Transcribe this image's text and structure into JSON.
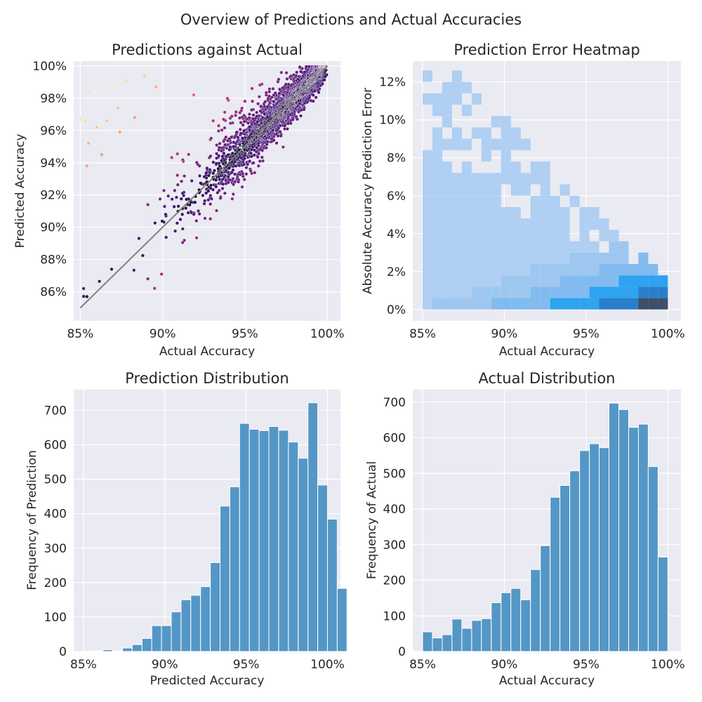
{
  "figure": {
    "suptitle": "Overview of Predictions and Actual Accuracies"
  },
  "chart_data": [
    {
      "type": "scatter",
      "title": "Predictions against Actual",
      "xlabel": "Actual Accuracy",
      "ylabel": "Predicted Accuracy",
      "xlim": [
        84.6,
        100.8
      ],
      "ylim": [
        84.2,
        100.3
      ],
      "xticks": [
        85,
        90,
        95,
        100
      ],
      "xtick_labels": [
        "85%",
        "90%",
        "95%",
        "100%"
      ],
      "yticks": [
        86,
        88,
        90,
        92,
        94,
        96,
        98,
        100
      ],
      "ytick_labels": [
        "86%",
        "88%",
        "90%",
        "92%",
        "94%",
        "96%",
        "98%",
        "100%"
      ],
      "colormap": "magma (dark = small error, light = large error)",
      "reference_line": {
        "x": [
          85,
          100
        ],
        "y": [
          85,
          100
        ],
        "color": "#808080"
      },
      "outlier_points": [
        {
          "x": 85.0,
          "y": 96.7
        },
        {
          "x": 85.3,
          "y": 96.6
        },
        {
          "x": 85.9,
          "y": 98.4
        },
        {
          "x": 86.9,
          "y": 98.8
        },
        {
          "x": 87.8,
          "y": 99.1
        },
        {
          "x": 88.9,
          "y": 99.4
        },
        {
          "x": 89.6,
          "y": 98.7
        },
        {
          "x": 86.0,
          "y": 96.2
        },
        {
          "x": 87.3,
          "y": 97.4
        },
        {
          "x": 86.6,
          "y": 96.6
        },
        {
          "x": 85.5,
          "y": 95.2
        },
        {
          "x": 85.4,
          "y": 93.8
        },
        {
          "x": 86.3,
          "y": 94.5
        },
        {
          "x": 87.4,
          "y": 95.9
        },
        {
          "x": 88.3,
          "y": 96.8
        },
        {
          "x": 86.9,
          "y": 87.4
        },
        {
          "x": 89.1,
          "y": 86.8
        },
        {
          "x": 85.2,
          "y": 86.2
        },
        {
          "x": 85.4,
          "y": 85.7
        }
      ],
      "bulk": {
        "n": 7000,
        "x_distribution": "skewed toward high accuracy, mode ~97%",
        "abs_error_mostly_below": 2
      }
    },
    {
      "type": "heatmap",
      "title": "Prediction Error Heatmap",
      "xlabel": "Actual Accuracy",
      "ylabel": "Absolute Accuracy Prediction Error",
      "xlim": [
        84.4,
        100.8
      ],
      "ylim": [
        -0.6,
        13.1
      ],
      "xticks": [
        85,
        90,
        95,
        100
      ],
      "xtick_labels": [
        "85%",
        "90%",
        "95%",
        "100%"
      ],
      "yticks": [
        0,
        2,
        4,
        6,
        8,
        10,
        12
      ],
      "ytick_labels": [
        "0%",
        "2%",
        "4%",
        "6%",
        "8%",
        "10%",
        "12%"
      ],
      "bin_width_x": 0.6,
      "bin_width_y": 0.6,
      "density_note": "highest density at actual 96–100%, error 0–1%; broad low-density spread up to ~12% error at low actual accuracy"
    },
    {
      "type": "bar",
      "title": "Prediction Distribution",
      "xlabel": "Predicted Accuracy",
      "ylabel": "Frequency of Prediction",
      "xlim": [
        84.4,
        100.8
      ],
      "ylim": [
        0,
        760
      ],
      "xticks": [
        85,
        90,
        95,
        100
      ],
      "xtick_labels": [
        "85%",
        "90%",
        "95%",
        "100%"
      ],
      "yticks": [
        0,
        100,
        200,
        300,
        400,
        500,
        600,
        700
      ],
      "ytick_labels": [
        "0",
        "100",
        "200",
        "300",
        "400",
        "500",
        "600",
        "700"
      ],
      "bin_edges_start": 85.6,
      "bin_width": 0.6,
      "values": [
        2,
        5,
        2,
        10,
        20,
        38,
        75,
        75,
        115,
        150,
        163,
        188,
        258,
        422,
        478,
        662,
        645,
        641,
        653,
        642,
        608,
        561,
        722,
        483,
        384,
        183
      ]
    },
    {
      "type": "bar",
      "title": "Actual Distribution",
      "xlabel": "Actual Accuracy",
      "ylabel": "Frequency of Actual",
      "xlim": [
        84.4,
        100.8
      ],
      "ylim": [
        0,
        735
      ],
      "xticks": [
        85,
        90,
        95,
        100
      ],
      "xtick_labels": [
        "85%",
        "90%",
        "95%",
        "100%"
      ],
      "yticks": [
        0,
        100,
        200,
        300,
        400,
        500,
        600,
        700
      ],
      "ytick_labels": [
        "0",
        "100",
        "200",
        "300",
        "400",
        "500",
        "600",
        "700"
      ],
      "bin_edges_start": 85,
      "bin_width": 0.6,
      "values": [
        55,
        38,
        47,
        91,
        65,
        87,
        92,
        137,
        165,
        177,
        145,
        230,
        297,
        433,
        466,
        507,
        564,
        583,
        572,
        697,
        679,
        629,
        638,
        519,
        265
      ]
    }
  ]
}
